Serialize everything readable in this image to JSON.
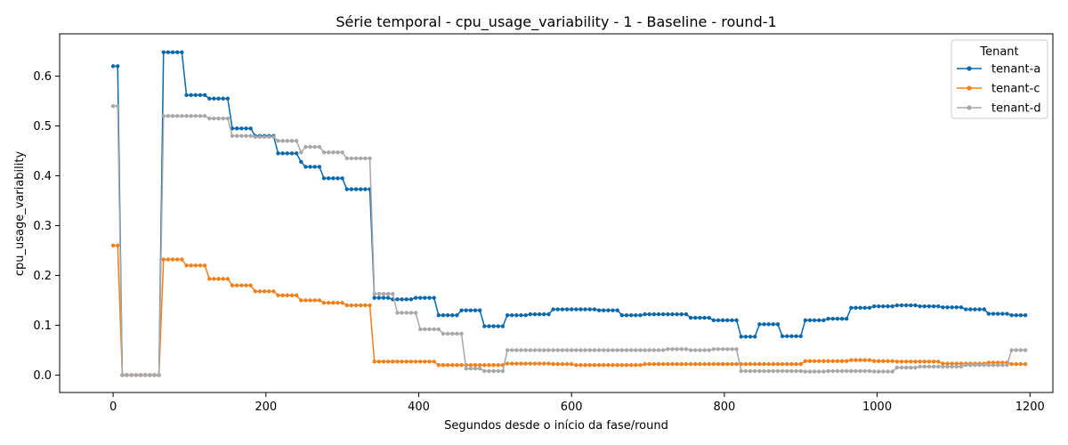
{
  "chart_data": {
    "type": "line",
    "title": "Série temporal - cpu_usage_variability - 1 - Baseline - round-1",
    "xlabel": "Segundos desde o início da fase/round",
    "ylabel": "cpu_usage_variability",
    "xlim": [
      -70,
      1230
    ],
    "ylim": [
      -0.035,
      0.685
    ],
    "xticks": [
      0,
      200,
      400,
      600,
      800,
      1000,
      1200
    ],
    "yticks": [
      0.0,
      0.1,
      0.2,
      0.3,
      0.4,
      0.5,
      0.6
    ],
    "grid": false,
    "legend": {
      "title": "Tenant",
      "placement": "top-right"
    },
    "sample_interval_s": 6,
    "series": [
      {
        "name": "tenant-a",
        "color": "#0868ac",
        "steps": [
          [
            0,
            0.62
          ],
          [
            12,
            0.0
          ],
          [
            66,
            0.648
          ],
          [
            96,
            0.562
          ],
          [
            126,
            0.555
          ],
          [
            156,
            0.495
          ],
          [
            186,
            0.48
          ],
          [
            216,
            0.445
          ],
          [
            246,
            0.428
          ],
          [
            252,
            0.418
          ],
          [
            276,
            0.395
          ],
          [
            306,
            0.373
          ],
          [
            342,
            0.155
          ],
          [
            366,
            0.152
          ],
          [
            396,
            0.155
          ],
          [
            426,
            0.12
          ],
          [
            456,
            0.13
          ],
          [
            486,
            0.098
          ],
          [
            516,
            0.12
          ],
          [
            546,
            0.122
          ],
          [
            576,
            0.132
          ],
          [
            636,
            0.13
          ],
          [
            666,
            0.12
          ],
          [
            696,
            0.122
          ],
          [
            756,
            0.115
          ],
          [
            786,
            0.11
          ],
          [
            822,
            0.077
          ],
          [
            846,
            0.102
          ],
          [
            876,
            0.078
          ],
          [
            906,
            0.11
          ],
          [
            936,
            0.113
          ],
          [
            966,
            0.135
          ],
          [
            996,
            0.138
          ],
          [
            1026,
            0.14
          ],
          [
            1056,
            0.138
          ],
          [
            1086,
            0.136
          ],
          [
            1116,
            0.132
          ],
          [
            1146,
            0.123
          ],
          [
            1176,
            0.12
          ]
        ]
      },
      {
        "name": "tenant-c",
        "color": "#f57f17",
        "steps": [
          [
            0,
            0.26
          ],
          [
            12,
            0.0
          ],
          [
            66,
            0.232
          ],
          [
            96,
            0.22
          ],
          [
            126,
            0.193
          ],
          [
            156,
            0.18
          ],
          [
            186,
            0.168
          ],
          [
            216,
            0.16
          ],
          [
            246,
            0.15
          ],
          [
            276,
            0.145
          ],
          [
            306,
            0.14
          ],
          [
            342,
            0.027
          ],
          [
            426,
            0.02
          ],
          [
            456,
            0.02
          ],
          [
            486,
            0.02
          ],
          [
            516,
            0.023
          ],
          [
            576,
            0.022
          ],
          [
            606,
            0.02
          ],
          [
            666,
            0.02
          ],
          [
            696,
            0.022
          ],
          [
            756,
            0.022
          ],
          [
            786,
            0.022
          ],
          [
            876,
            0.022
          ],
          [
            906,
            0.028
          ],
          [
            966,
            0.03
          ],
          [
            996,
            0.028
          ],
          [
            1026,
            0.027
          ],
          [
            1086,
            0.023
          ],
          [
            1146,
            0.025
          ],
          [
            1176,
            0.022
          ]
        ]
      },
      {
        "name": "tenant-d",
        "color": "#a8a8a8",
        "steps": [
          [
            0,
            0.54
          ],
          [
            12,
            0.0
          ],
          [
            66,
            0.52
          ],
          [
            126,
            0.515
          ],
          [
            156,
            0.48
          ],
          [
            186,
            0.478
          ],
          [
            216,
            0.47
          ],
          [
            246,
            0.447
          ],
          [
            252,
            0.458
          ],
          [
            276,
            0.447
          ],
          [
            306,
            0.435
          ],
          [
            342,
            0.163
          ],
          [
            372,
            0.125
          ],
          [
            402,
            0.092
          ],
          [
            432,
            0.083
          ],
          [
            462,
            0.013
          ],
          [
            486,
            0.008
          ],
          [
            516,
            0.05
          ],
          [
            576,
            0.05
          ],
          [
            666,
            0.05
          ],
          [
            726,
            0.052
          ],
          [
            756,
            0.05
          ],
          [
            786,
            0.052
          ],
          [
            822,
            0.008
          ],
          [
            906,
            0.007
          ],
          [
            936,
            0.008
          ],
          [
            996,
            0.007
          ],
          [
            1026,
            0.015
          ],
          [
            1056,
            0.017
          ],
          [
            1116,
            0.02
          ],
          [
            1176,
            0.05
          ]
        ]
      }
    ]
  }
}
